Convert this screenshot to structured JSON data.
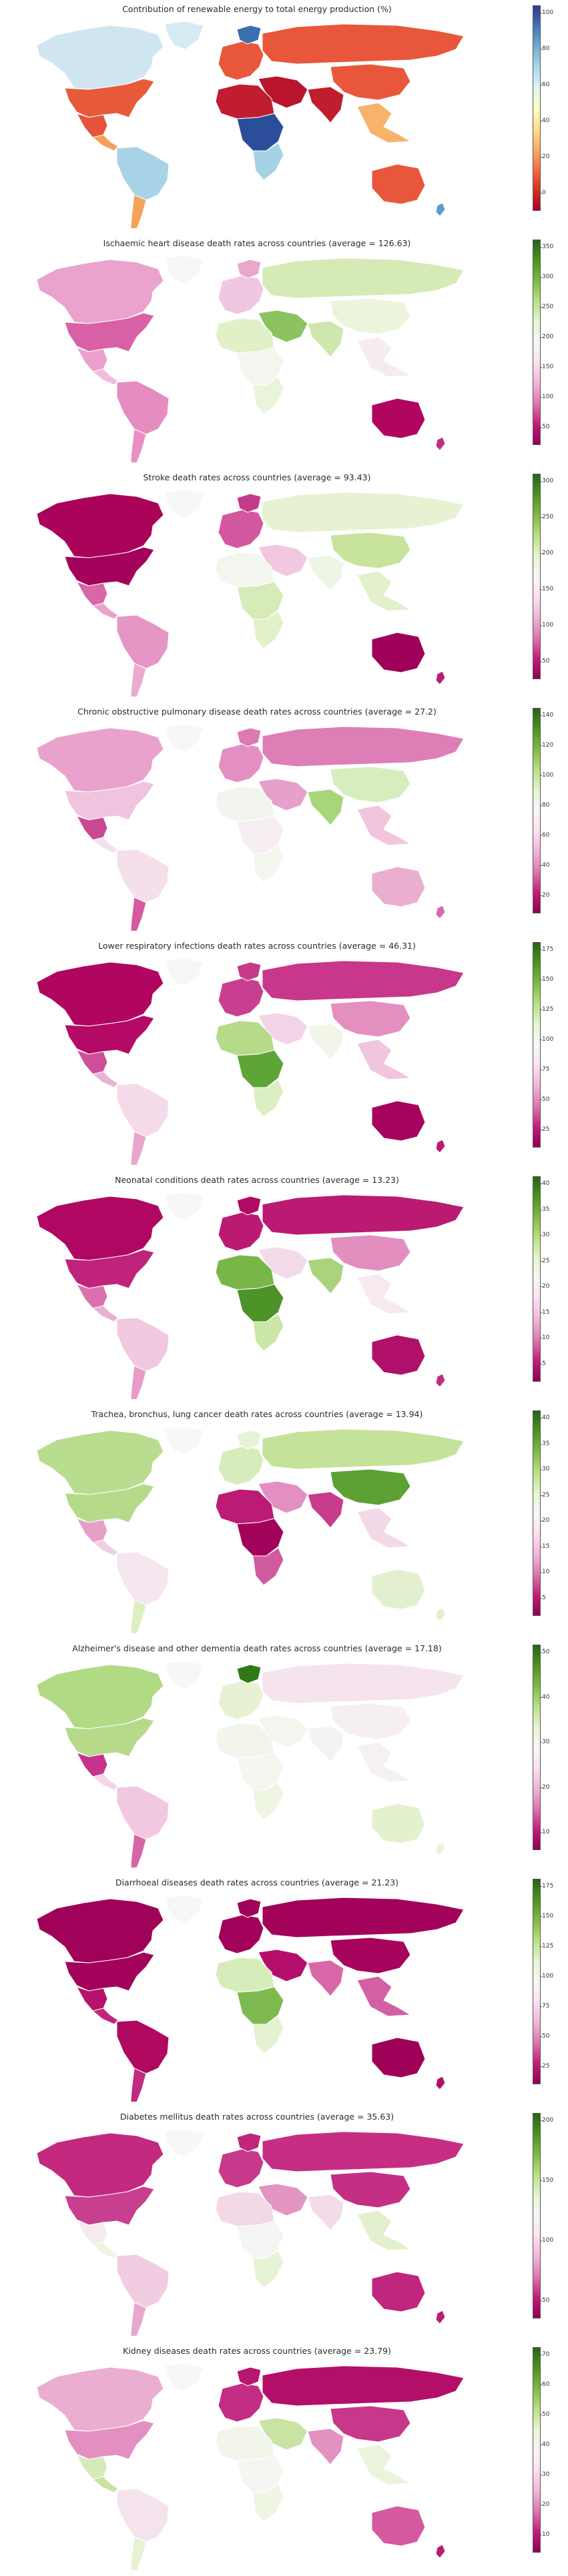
{
  "panels": [
    {
      "title": "Contribution of renewable energy to total energy production (%)",
      "scale": "RdYlBu",
      "ticks": [
        "100",
        "80",
        "60",
        "40",
        "20",
        "0"
      ],
      "colors": {
        "north_america": "#cfe6f1",
        "usa": "#e75a3a",
        "mexico": "#e6533a",
        "central_america": "#f4a05a",
        "greenland": "#d6eaf3",
        "south_america": "#a8d3e7",
        "south_america_south": "#f6a15a",
        "europe": "#e8573c",
        "scandinavia": "#3b6fb0",
        "russia": "#e8573c",
        "middle_east": "#b8152d",
        "africa_north": "#c01d2e",
        "africa_central": "#2c4e9a",
        "africa_south": "#a6d2e6",
        "south_asia": "#c01d2e",
        "china": "#e8573c",
        "southeast_asia": "#f7b36a",
        "australia": "#e8573c",
        "new_zealand": "#5a9bd0"
      }
    },
    {
      "title": "Ischaemic heart disease death rates across countries (average = 126.63)",
      "scale": "PiYG",
      "ticks": [
        "350",
        "300",
        "250",
        "200",
        "150",
        "100",
        "50"
      ],
      "colors": {
        "north_america": "#e9a3cc",
        "usa": "#d861a6",
        "mexico": "#ec9fcd",
        "central_america": "#f0bcdb",
        "greenland": "#f7f7f7",
        "south_america": "#e58dc1",
        "south_america_south": "#e98fc3",
        "europe": "#f0c6e0",
        "scandinavia": "#e7a8cc",
        "russia": "#d5eab5",
        "middle_east": "#8cc25f",
        "africa_north": "#e1f0c7",
        "africa_central": "#f3f6ee",
        "africa_south": "#eaf4db",
        "south_asia": "#cfe7ae",
        "china": "#ecf5dc",
        "southeast_asia": "#f7ebf2",
        "australia": "#b1065f",
        "new_zealand": "#c52c7e"
      }
    },
    {
      "title": "Stroke death rates across countries (average = 93.43)",
      "scale": "PiYG",
      "ticks": [
        "300",
        "250",
        "200",
        "150",
        "100",
        "50"
      ],
      "colors": {
        "north_america": "#a9035a",
        "usa": "#a3035a",
        "mexico": "#d767a6",
        "central_america": "#e9a3cd",
        "greenland": "#f7f7f7",
        "south_america": "#e696c5",
        "south_america_south": "#eaabd0",
        "europe": "#d4589f",
        "scandinavia": "#c33a89",
        "russia": "#e6f2d2",
        "middle_east": "#f1c8df",
        "africa_north": "#f3f6ef",
        "africa_central": "#d6ebb8",
        "africa_south": "#e3f1cb",
        "south_asia": "#eef5e4",
        "china": "#c8e39c",
        "southeast_asia": "#e2f0cc",
        "australia": "#9e0157",
        "new_zealand": "#b81f74"
      }
    },
    {
      "title": "Chronic obstructive pulmonary disease death rates across countries (average = 27.2)",
      "scale": "PiYG",
      "ticks": [
        "140",
        "120",
        "100",
        "80",
        "60",
        "40",
        "20"
      ],
      "colors": {
        "north_america": "#e8a2cb",
        "usa": "#f0c3de",
        "mexico": "#c94993",
        "central_america": "#f5e1ec",
        "greenland": "#f7f7f7",
        "south_america": "#f4dfeb",
        "south_america_south": "#d4599f",
        "europe": "#e48fc1",
        "scandinavia": "#de7ab3",
        "russia": "#de7eb6",
        "middle_east": "#e7a0c9",
        "africa_north": "#f2f5ee",
        "africa_central": "#f7eef3",
        "africa_south": "#f3f5ee",
        "south_asia": "#a8d47a",
        "china": "#d8edbd",
        "southeast_asia": "#f1c5de",
        "australia": "#eaaed1",
        "new_zealand": "#d669aa"
      }
    },
    {
      "title": "Lower respiratory infections death rates across countries (average = 46.31)",
      "scale": "PiYG",
      "ticks": [
        "175",
        "150",
        "125",
        "100",
        "75",
        "50",
        "25"
      ],
      "colors": {
        "north_america": "#b0065f",
        "usa": "#b40a66",
        "mexico": "#cf4e99",
        "central_america": "#eab2d3",
        "greenland": "#f7f7f7",
        "south_america": "#f5dbe9",
        "south_america_south": "#e9a6cd",
        "europe": "#c93f8f",
        "scandinavia": "#c53a89",
        "russia": "#c8378b",
        "middle_east": "#f3d4e6",
        "africa_north": "#b5db8a",
        "africa_central": "#5fa436",
        "africa_south": "#dcefc3",
        "south_asia": "#f1f6e9",
        "china": "#e38fc0",
        "southeast_asia": "#f0c5dd",
        "australia": "#a8035c",
        "new_zealand": "#bb1a74"
      }
    },
    {
      "title": "Neonatal conditions death rates across countries (average = 13.23)",
      "scale": "PiYG",
      "ticks": [
        "40",
        "35",
        "30",
        "25",
        "20",
        "15",
        "10",
        "5"
      ],
      "colors": {
        "north_america": "#b00762",
        "usa": "#c0237a",
        "mexico": "#dc70ae",
        "central_america": "#eab0d2",
        "greenland": "#f7f7f7",
        "south_america": "#f0c8df",
        "south_america_south": "#e79cc8",
        "europe": "#bb1a73",
        "scandinavia": "#b10a66",
        "russia": "#bb1a73",
        "middle_east": "#f4dbea",
        "africa_north": "#78b648",
        "africa_central": "#4d9328",
        "africa_south": "#cbe6a6",
        "south_asia": "#a9d47d",
        "china": "#e28ebf",
        "southeast_asia": "#f6e9f0",
        "australia": "#b1106a",
        "new_zealand": "#c52c7e"
      }
    },
    {
      "title": "Trachea, bronchus, lung cancer death rates across countries (average = 13.94)",
      "scale": "PiYG",
      "ticks": [
        "40",
        "35",
        "30",
        "25",
        "20",
        "15",
        "10",
        "5"
      ],
      "colors": {
        "north_america": "#b8dd8f",
        "usa": "#b5db8a",
        "mexico": "#e6a0c8",
        "central_america": "#f2d0e4",
        "greenland": "#f7f7f7",
        "south_america": "#f6e6ef",
        "south_america_south": "#dcefc2",
        "europe": "#d7ecbb",
        "scandinavia": "#e7f3d6",
        "russia": "#c4e29a",
        "middle_east": "#e48fc1",
        "africa_north": "#bc1b75",
        "africa_central": "#a3025a",
        "africa_south": "#d25a9f",
        "south_asia": "#c73d8b",
        "china": "#5da033",
        "southeast_asia": "#f3d9e8",
        "australia": "#e3f0cf",
        "new_zealand": "#e1f0c8"
      }
    },
    {
      "title": "Alzheimer's disease and other dementia death rates across countries (average = 17.18)",
      "scale": "PiYG",
      "ticks": [
        "50",
        "40",
        "30",
        "20",
        "10"
      ],
      "colors": {
        "north_america": "#b1da85",
        "usa": "#b5db8a",
        "mexico": "#c5348a",
        "central_america": "#f4d5e7",
        "greenland": "#f7f7f7",
        "south_america": "#f1c8df",
        "south_america_south": "#d664a6",
        "europe": "#e7f2d5",
        "scandinavia": "#2f7a17",
        "russia": "#f5e3ed",
        "middle_east": "#f3f5ee",
        "africa_north": "#f2f5ec",
        "africa_central": "#f4f6f0",
        "africa_south": "#eef5e2",
        "south_asia": "#f3f3f1",
        "china": "#f5eef2",
        "southeast_asia": "#f5f0f3",
        "australia": "#e4f1cf",
        "new_zealand": "#eaf4dc"
      }
    },
    {
      "title": "Diarrhoeal diseases death rates across countries (average = 21.23)",
      "scale": "PiYG",
      "ticks": [
        "175",
        "150",
        "125",
        "100",
        "75",
        "50",
        "25"
      ],
      "colors": {
        "north_america": "#a0025a",
        "usa": "#a3035b",
        "mexico": "#b5126b",
        "central_america": "#c0267d",
        "greenland": "#f7f7f7",
        "south_america": "#b0095f",
        "south_america_south": "#c02a7f",
        "europe": "#a2025a",
        "scandinavia": "#a0025a",
        "russia": "#a2025a",
        "middle_east": "#b50e6a",
        "africa_north": "#d7ecbb",
        "africa_central": "#7eb94f",
        "africa_south": "#e5f2d2",
        "south_asia": "#d868a8",
        "china": "#a8045e",
        "southeast_asia": "#d360a2",
        "australia": "#9e0157",
        "new_zealand": "#b30f68"
      }
    },
    {
      "title": "Diabetes mellitus death rates across countries (average = 35.63)",
      "scale": "PiYG",
      "ticks": [
        "200",
        "150",
        "100",
        "50"
      ],
      "colors": {
        "north_america": "#c2297f",
        "usa": "#c93f8f",
        "mexico": "#f6eaf1",
        "central_america": "#eef5e2",
        "greenland": "#f7f7f7",
        "south_america": "#f2cde2",
        "south_america_south": "#e8a8cd",
        "europe": "#c73a8b",
        "scandinavia": "#c0267c",
        "russia": "#c62e83",
        "middle_east": "#e294c2",
        "africa_north": "#f3d8e8",
        "africa_central": "#f4f4f2",
        "africa_south": "#e7f3d6",
        "south_asia": "#f4dbe9",
        "china": "#c42f85",
        "southeast_asia": "#e3f0cf",
        "australia": "#c0267d",
        "new_zealand": "#b82074"
      }
    },
    {
      "title": "Kidney diseases death rates across countries (average = 23.79)",
      "scale": "PiYG",
      "ticks": [
        "70",
        "60",
        "50",
        "40",
        "30",
        "20",
        "10"
      ],
      "colors": {
        "north_america": "#eaaed1",
        "usa": "#e48fc1",
        "mexico": "#d6eab9",
        "central_america": "#c8e3a2",
        "greenland": "#f7f7f7",
        "south_america": "#f5e4ee",
        "south_america_south": "#e5f2d4",
        "europe": "#c22e84",
        "scandinavia": "#b9166f",
        "russia": "#b30f69",
        "middle_east": "#c8e3a2",
        "africa_north": "#f1f5ea",
        "africa_central": "#f5f5f2",
        "africa_south": "#eef5e3",
        "south_asia": "#e291c1",
        "china": "#c7378a",
        "southeast_asia": "#eaf4dc",
        "australia": "#d4599f",
        "new_zealand": "#b81b72"
      }
    }
  ]
}
